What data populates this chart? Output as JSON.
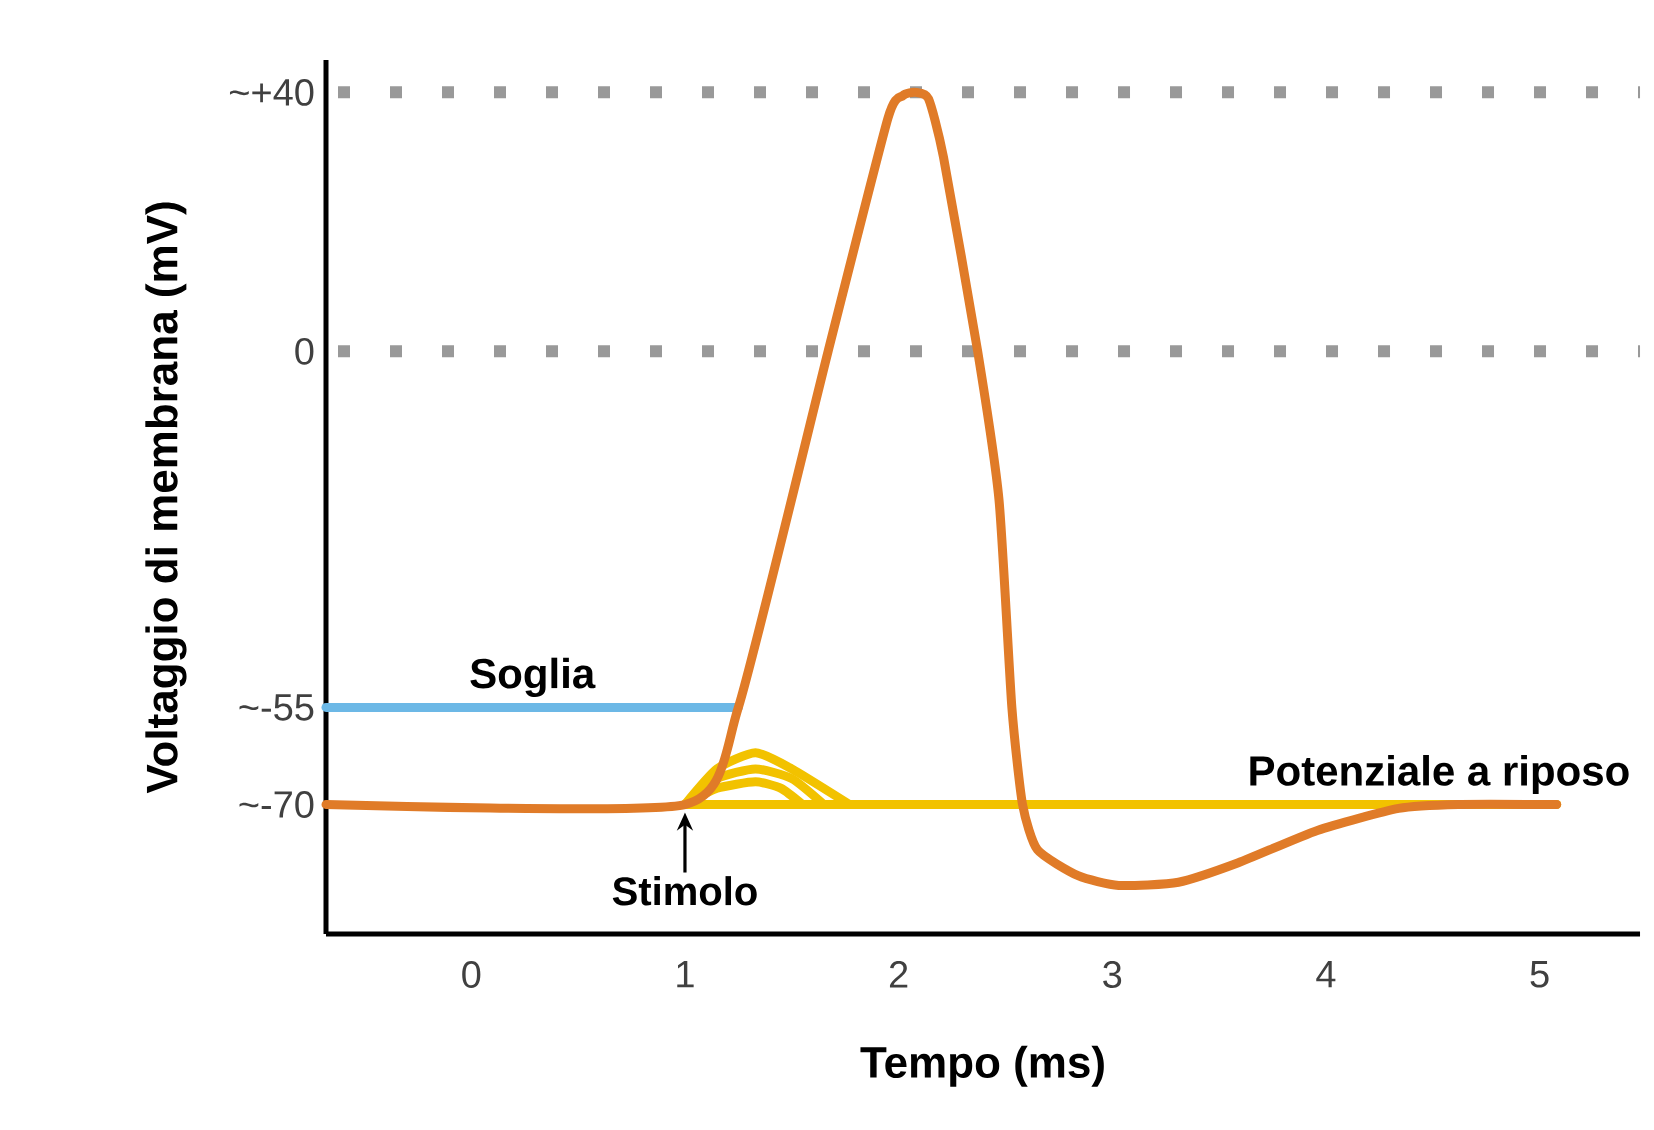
{
  "chart_data": {
    "type": "line",
    "xlabel": "Tempo (ms)",
    "ylabel": "Voltaggio di membrana (mV)",
    "xlim": [
      -0.68,
      5.47
    ],
    "ylim": [
      -90,
      45
    ],
    "xticks": [
      0,
      1,
      2,
      3,
      4,
      5
    ],
    "yticks": [
      {
        "value": 40,
        "label": "~+40"
      },
      {
        "value": 0,
        "label": "0"
      },
      {
        "value": -55,
        "label": "~-55"
      },
      {
        "value": -70,
        "label": "~-70"
      }
    ],
    "ref_lines": [
      {
        "axis": "y",
        "value": 40,
        "color": "#999999",
        "line_style": "dotted"
      },
      {
        "axis": "y",
        "value": 0,
        "color": "#999999",
        "line_style": "dotted"
      }
    ],
    "series": [
      {
        "color": "#f2c200",
        "x": [
          1.0,
          1.15,
          1.33,
          1.5,
          1.77
        ],
        "values": [
          -70,
          -64.5,
          -62,
          -64.5,
          -70
        ]
      },
      {
        "color": "#f2c200",
        "x": [
          1.0,
          1.15,
          1.33,
          1.5,
          1.65
        ],
        "values": [
          -70,
          -66,
          -64.5,
          -66,
          -70
        ]
      },
      {
        "color": "#f2c200",
        "x": [
          1.0,
          1.15,
          1.33,
          1.45,
          1.55
        ],
        "values": [
          -70,
          -67.5,
          -66.5,
          -67.5,
          -70
        ]
      },
      {
        "name": "Potenziale a riposo",
        "color": "#f2c200",
        "x": [
          1.0,
          5.08
        ],
        "values": [
          -70,
          -70
        ]
      },
      {
        "name": "Soglia",
        "color": "#6cb8e6",
        "x": [
          -0.68,
          1.25
        ],
        "values": [
          -55,
          -55
        ]
      },
      {
        "color": "#e07b28",
        "x": [
          -0.68,
          1.0,
          1.25,
          1.67,
          1.95,
          2.02,
          2.08,
          2.14,
          2.21,
          2.37,
          2.47,
          2.53,
          2.58,
          2.65,
          2.84,
          3.03,
          3.31,
          3.59,
          3.96,
          4.34,
          4.62,
          5.08
        ],
        "values": [
          -70,
          -70,
          -55,
          0,
          36,
          39.5,
          40,
          39,
          30,
          0,
          -23,
          -55,
          -70,
          -77,
          -81,
          -82.5,
          -82,
          -79,
          -74,
          -70.6,
          -70,
          -70
        ]
      }
    ],
    "annotations": [
      {
        "text": "Stimolo",
        "x": 1,
        "y": -70
      }
    ]
  }
}
